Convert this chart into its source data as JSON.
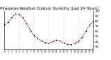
{
  "title": "Milwaukee Weather Outdoor Humidity (Last 24 Hours)",
  "x_values": [
    0,
    1,
    2,
    3,
    4,
    5,
    6,
    7,
    8,
    9,
    10,
    11,
    12,
    13,
    14,
    15,
    16,
    17,
    18,
    19,
    20,
    21,
    22,
    23,
    24
  ],
  "y_values": [
    72,
    78,
    87,
    94,
    93,
    87,
    75,
    62,
    52,
    46,
    41,
    38,
    36,
    40,
    43,
    41,
    37,
    35,
    34,
    36,
    40,
    48,
    60,
    72,
    80
  ],
  "line_color": "#cc0000",
  "marker_color": "#000000",
  "bg_color": "#ffffff",
  "grid_color": "#aaaaaa",
  "ylim": [
    25,
    100
  ],
  "yticks": [
    30,
    40,
    50,
    60,
    70,
    80,
    90,
    100
  ],
  "ytick_labels": [
    "30",
    "40",
    "50",
    "60",
    "70",
    "80",
    "90",
    "100"
  ],
  "xlim": [
    0,
    24
  ],
  "title_fontsize": 3.8,
  "tick_fontsize": 3.0,
  "vgrid_positions": [
    4,
    8,
    12,
    16,
    20,
    24
  ]
}
